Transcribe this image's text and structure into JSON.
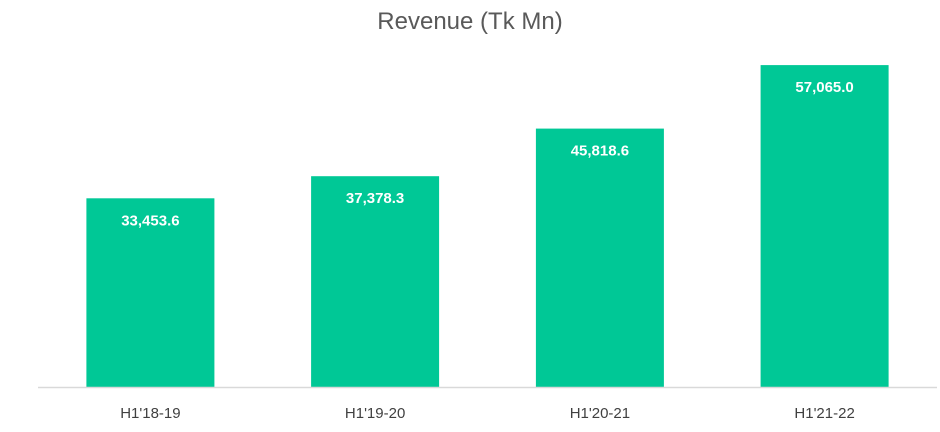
{
  "chart_data": {
    "type": "bar",
    "title": "Revenue (Tk Mn)",
    "xlabel": "",
    "ylabel": "",
    "categories": [
      "H1'18-19",
      "H1'19-20",
      "H1'20-21",
      "H1'21-22"
    ],
    "values": [
      33453.6,
      37378.3,
      45818.6,
      57065.0
    ],
    "value_labels": [
      "33,453.6",
      "37,378.3",
      "45,818.6",
      "57,065.0"
    ],
    "ylim": [
      0,
      64000
    ],
    "grid": false,
    "legend": "none",
    "bar_color": "#00C896",
    "label_color": "#ffffff",
    "axis_color": "#D9D9D9",
    "tick_label_color": "#404040"
  }
}
